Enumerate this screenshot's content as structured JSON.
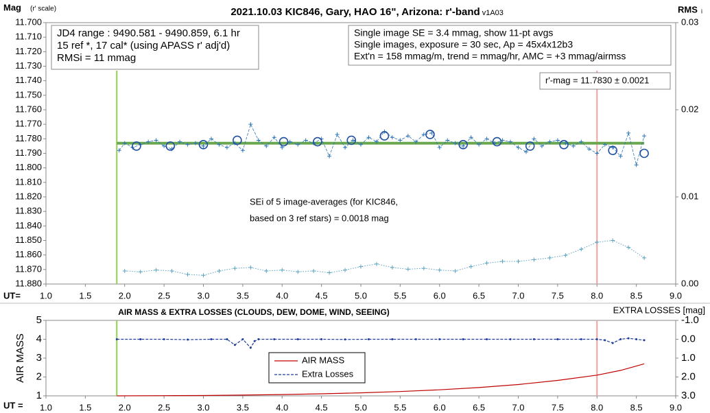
{
  "chart_data": [
    {
      "type": "scatter",
      "title": "2021.10.03 KIC846, Gary, HAO 16\", Arizona: r'-band",
      "title_note": "- v1A03",
      "y_label": "Mag",
      "y_label_note": "(r' scale)",
      "y2_label": "RMS",
      "y2_label_note": "i",
      "x_label": "UT=",
      "xlim": [
        1,
        9
      ],
      "xticks": [
        {
          "value": 1,
          "label": "1.0"
        },
        {
          "value": 1.5,
          "label": "1.5"
        },
        {
          "value": 2,
          "label": "2.0"
        },
        {
          "value": 2.5,
          "label": "2.5"
        },
        {
          "value": 3,
          "label": "3.0"
        },
        {
          "value": 3.5,
          "label": "3.5"
        },
        {
          "value": 4,
          "label": "4.0"
        },
        {
          "value": 4.5,
          "label": "4.5"
        },
        {
          "value": 5,
          "label": "5.0"
        },
        {
          "value": 5.5,
          "label": "5.5"
        },
        {
          "value": 6,
          "label": "6.0"
        },
        {
          "value": 6.5,
          "label": "6.5"
        },
        {
          "value": 7,
          "label": "7.0"
        },
        {
          "value": 7.5,
          "label": "7.5"
        },
        {
          "value": 8,
          "label": "8.0"
        },
        {
          "value": 8.5,
          "label": "8.5"
        },
        {
          "value": 9,
          "label": "9.0"
        }
      ],
      "ylim": [
        11.88,
        11.7
      ],
      "yticks": [
        {
          "value": 11.7,
          "label": "11.700"
        },
        {
          "value": 11.71,
          "label": "11.710"
        },
        {
          "value": 11.72,
          "label": "11.720"
        },
        {
          "value": 11.73,
          "label": "11.730"
        },
        {
          "value": 11.74,
          "label": "11.740"
        },
        {
          "value": 11.75,
          "label": "11.750"
        },
        {
          "value": 11.76,
          "label": "11.760"
        },
        {
          "value": 11.77,
          "label": "11.770"
        },
        {
          "value": 11.78,
          "label": "11.780"
        },
        {
          "value": 11.79,
          "label": "11.790"
        },
        {
          "value": 11.8,
          "label": "11.800"
        },
        {
          "value": 11.81,
          "label": "11.810"
        },
        {
          "value": 11.82,
          "label": "11.820"
        },
        {
          "value": 11.83,
          "label": "11.830"
        },
        {
          "value": 11.84,
          "label": "11.840"
        },
        {
          "value": 11.85,
          "label": "11.850"
        },
        {
          "value": 11.86,
          "label": "11.860"
        },
        {
          "value": 11.87,
          "label": "11.870"
        },
        {
          "value": 11.88,
          "label": "11.880"
        }
      ],
      "y2lim": [
        0,
        0.03
      ],
      "y2ticks": [
        0.03,
        0.02,
        0.01,
        {
          "value": 0,
          "label": "0.00"
        }
      ],
      "vlines": [
        {
          "x": 1.9,
          "color": "#92d050"
        },
        {
          "x": 8.0,
          "color": "#f4a0a0"
        }
      ],
      "annotations": [
        [
          "JD4 range : 9490.581 - 9490.859,  6.1  hr",
          "15 ref *, 17 cal* (using APASS r' adj'd)",
          "RMSi = 11 mmag"
        ],
        [
          "Single image SE = 3.4 mmag, show  11-pt avgs",
          "Single images, exposure = 30 sec, Ap = 45x4x12b3",
          "Ext'n = 158 mmag/m, trend =   mmag/hr, AMC = +3 mmag/airmss"
        ],
        [
          "r'-mag = 11.7830 ± 0.0021"
        ],
        [
          "SEi of 5 image-averages (for KIC846,",
          "based on 3 ref stars) = 0.0018 mag"
        ]
      ],
      "series": [
        {
          "color": "#6aa84f",
          "marker": "none",
          "dash": "solid",
          "width": 4,
          "x": [
            1.9,
            8.6
          ],
          "values": [
            11.783,
            11.783
          ]
        },
        {
          "color": "#2e75b6",
          "marker": "plus",
          "dash": "dashed",
          "width": 0.8,
          "x": [
            1.93,
            2.0,
            2.1,
            2.2,
            2.3,
            2.4,
            2.5,
            2.6,
            2.7,
            2.8,
            2.9,
            3.0,
            3.1,
            3.2,
            3.3,
            3.4,
            3.5,
            3.6,
            3.7,
            3.8,
            3.9,
            4.0,
            4.1,
            4.2,
            4.3,
            4.4,
            4.5,
            4.6,
            4.7,
            4.8,
            4.9,
            5.0,
            5.1,
            5.2,
            5.3,
            5.4,
            5.5,
            5.6,
            5.7,
            5.8,
            5.9,
            6.0,
            6.1,
            6.2,
            6.3,
            6.4,
            6.5,
            6.6,
            6.7,
            6.8,
            6.9,
            7.0,
            7.1,
            7.2,
            7.3,
            7.4,
            7.5,
            7.6,
            7.7,
            7.8,
            7.9,
            8.0,
            8.1,
            8.2,
            8.3,
            8.4,
            8.5,
            8.6
          ],
          "values": [
            11.788,
            11.783,
            11.786,
            11.784,
            11.782,
            11.781,
            11.785,
            11.787,
            11.782,
            11.784,
            11.783,
            11.785,
            11.78,
            11.784,
            11.786,
            11.783,
            11.788,
            11.77,
            11.781,
            11.785,
            11.779,
            11.786,
            11.782,
            11.784,
            11.781,
            11.783,
            11.78,
            11.792,
            11.777,
            11.786,
            11.781,
            11.784,
            11.779,
            11.782,
            11.775,
            11.779,
            11.781,
            11.778,
            11.782,
            11.777,
            11.776,
            11.786,
            11.781,
            11.783,
            11.785,
            11.779,
            11.784,
            11.78,
            11.783,
            11.781,
            11.782,
            11.786,
            11.789,
            11.78,
            11.785,
            11.782,
            11.781,
            11.783,
            11.785,
            11.782,
            11.787,
            11.79,
            11.784,
            11.786,
            11.792,
            11.776,
            11.798,
            11.778
          ]
        },
        {
          "color": "#2050a0",
          "marker": "circle",
          "dash": "none",
          "width": 1.5,
          "x": [
            2.15,
            2.58,
            3.0,
            3.43,
            4.02,
            4.45,
            4.88,
            5.3,
            5.88,
            6.3,
            6.73,
            7.15,
            7.58,
            8.2,
            8.6
          ],
          "values": [
            11.785,
            11.785,
            11.784,
            11.781,
            11.782,
            11.782,
            11.781,
            11.778,
            11.777,
            11.784,
            11.782,
            11.785,
            11.784,
            11.788,
            11.79
          ]
        },
        {
          "color": "#5ba3c0",
          "marker": "plus",
          "dash": "dotted",
          "width": 1,
          "axis": "y2",
          "x": [
            2.0,
            2.2,
            2.4,
            2.6,
            2.8,
            3.0,
            3.2,
            3.4,
            3.6,
            3.8,
            4.0,
            4.2,
            4.4,
            4.6,
            4.8,
            5.0,
            5.2,
            5.4,
            5.6,
            5.8,
            6.0,
            6.2,
            6.4,
            6.6,
            6.8,
            7.0,
            7.2,
            7.4,
            7.6,
            7.8,
            8.0,
            8.2,
            8.4,
            8.6
          ],
          "values": [
            0.0015,
            0.0014,
            0.0016,
            0.0015,
            0.0011,
            0.001,
            0.0015,
            0.0018,
            0.0019,
            0.0015,
            0.0016,
            0.0014,
            0.0015,
            0.0013,
            0.0016,
            0.002,
            0.0023,
            0.0019,
            0.0017,
            0.0018,
            0.0016,
            0.0015,
            0.002,
            0.0024,
            0.0026,
            0.0026,
            0.0028,
            0.003,
            0.0033,
            0.004,
            0.0048,
            0.005,
            0.0042,
            0.003
          ]
        }
      ]
    },
    {
      "type": "line",
      "title": "AIR MASS & EXTRA LOSSES (CLOUDS, DEW, DOME, WIND, SEEING)",
      "y_label": "AIR MASS",
      "y2_label": "EXTRA LOSSES [mag]",
      "x_label": "UT =",
      "xlim": [
        1,
        9
      ],
      "xticks": [
        {
          "value": 1,
          "label": "1.0"
        },
        {
          "value": 1.5,
          "label": "1.5"
        },
        {
          "value": 2,
          "label": "2.0"
        },
        {
          "value": 2.5,
          "label": "2.5"
        },
        {
          "value": 3,
          "label": "3.0"
        },
        {
          "value": 3.5,
          "label": "3.5"
        },
        {
          "value": 4,
          "label": "4.0"
        },
        {
          "value": 4.5,
          "label": "4.5"
        },
        {
          "value": 5,
          "label": "5.0"
        },
        {
          "value": 5.5,
          "label": "5.5"
        },
        {
          "value": 6,
          "label": "6.0"
        },
        {
          "value": 6.5,
          "label": "6.5"
        },
        {
          "value": 7,
          "label": "7.0"
        },
        {
          "value": 7.5,
          "label": "7.5"
        },
        {
          "value": 8,
          "label": "8.0"
        },
        {
          "value": 8.5,
          "label": "8.5"
        },
        {
          "value": 9,
          "label": "9.0"
        }
      ],
      "ylim": [
        1,
        5
      ],
      "yticks": [
        1,
        2,
        3,
        4,
        5
      ],
      "y2lim": [
        3,
        -1
      ],
      "y2ticks": [
        {
          "value": -1,
          "label": "-1.0"
        },
        {
          "value": 0,
          "label": "0.0"
        },
        {
          "value": 1,
          "label": "1.0"
        },
        {
          "value": 2,
          "label": "2.0"
        },
        {
          "value": 3,
          "label": "3.0"
        }
      ],
      "vlines": [
        {
          "x": 1.9,
          "color": "#92d050"
        },
        {
          "x": 8.0,
          "color": "#f4a0a0"
        }
      ],
      "legend": true,
      "series": [
        {
          "name": "AIR MASS",
          "color": "#c00000",
          "marker": "none",
          "dash": "solid",
          "width": 1.2,
          "x": [
            1.9,
            2.5,
            3.0,
            3.5,
            4.0,
            4.5,
            5.0,
            5.5,
            6.0,
            6.5,
            7.0,
            7.5,
            8.0,
            8.3,
            8.6
          ],
          "values": [
            1.0,
            1.01,
            1.02,
            1.04,
            1.07,
            1.11,
            1.16,
            1.23,
            1.32,
            1.44,
            1.6,
            1.82,
            2.1,
            2.35,
            2.7
          ]
        },
        {
          "name": "Extra Losses",
          "color": "#1f3c99",
          "marker": "dot",
          "dash": "dashed",
          "width": 1.2,
          "axis": "y2",
          "x": [
            1.9,
            2.2,
            2.5,
            2.8,
            3.1,
            3.3,
            3.4,
            3.5,
            3.6,
            3.65,
            3.7,
            3.9,
            4.2,
            4.5,
            4.8,
            5.1,
            5.4,
            5.7,
            6.0,
            6.3,
            6.6,
            6.9,
            7.2,
            7.5,
            7.8,
            8.0,
            8.1,
            8.2,
            8.3,
            8.4,
            8.5,
            8.6
          ],
          "values": [
            0,
            0,
            0,
            0.02,
            0,
            0,
            0.3,
            0,
            0.45,
            0.1,
            0,
            0,
            0,
            0,
            0.01,
            0,
            0,
            0,
            0,
            0,
            0,
            0,
            0,
            0,
            0,
            0,
            0.05,
            0.2,
            0,
            -0.05,
            0,
            0.05
          ]
        }
      ]
    }
  ]
}
